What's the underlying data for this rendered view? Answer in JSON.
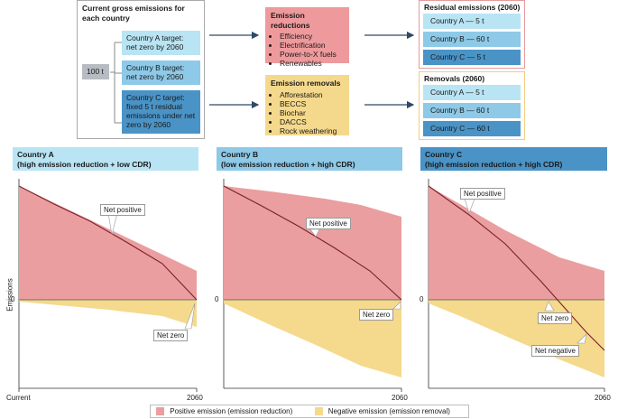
{
  "top": {
    "gross_title": "Current gross emissions for each country",
    "baseline": "100 t",
    "targets": [
      "Country A target: net zero by 2060",
      "Country B target: net zero by 2060",
      "Country C target: fixed 5 t residual emissions under net zero by 2060"
    ],
    "reductions": {
      "title": "Emission reductions",
      "items": [
        "Efficiency",
        "Electrification",
        "Power-to-X fuels",
        "Renewables"
      ]
    },
    "removals": {
      "title": "Emission removals",
      "items": [
        "Afforestation",
        "BECCS",
        "Biochar",
        "DACCS",
        "Rock weathering"
      ]
    },
    "residual": {
      "title": "Residual emissions (2060)",
      "items": [
        "Country A — 5 t",
        "Country B — 60 t",
        "Country C — 5 t"
      ]
    },
    "removals_2060": {
      "title": "Removals (2060)",
      "items": [
        "Country A — 5 t",
        "Country B — 60 t",
        "Country C — 60 t"
      ]
    }
  },
  "panels": [
    {
      "title_line1": "Country A",
      "title_line2": "(high emission reduction + low CDR)",
      "labels": [
        "Net positive",
        "Net zero"
      ]
    },
    {
      "title_line1": "Country B",
      "title_line2": "(low emission reduction + high CDR)",
      "labels": [
        "Net positive",
        "Net zero"
      ]
    },
    {
      "title_line1": "Country C",
      "title_line2": "(high emission reduction + high CDR)",
      "labels": [
        "Net positive",
        "Net zero",
        "Net negative"
      ]
    }
  ],
  "axes": {
    "ylabel": "Emissions",
    "zero": "0",
    "x_start": "Current",
    "x_end": "2060"
  },
  "legend": {
    "positive": "Positive emission (emission reduction)",
    "negative": "Negative emission (emission removal)"
  },
  "colors": {
    "positive": "#eb9e9f",
    "negative": "#f5d98c",
    "net_line": "#7a1f2b",
    "country_a": "#b9e4f4",
    "country_b": "#8ec9e7",
    "country_c": "#4a93c6"
  }
}
